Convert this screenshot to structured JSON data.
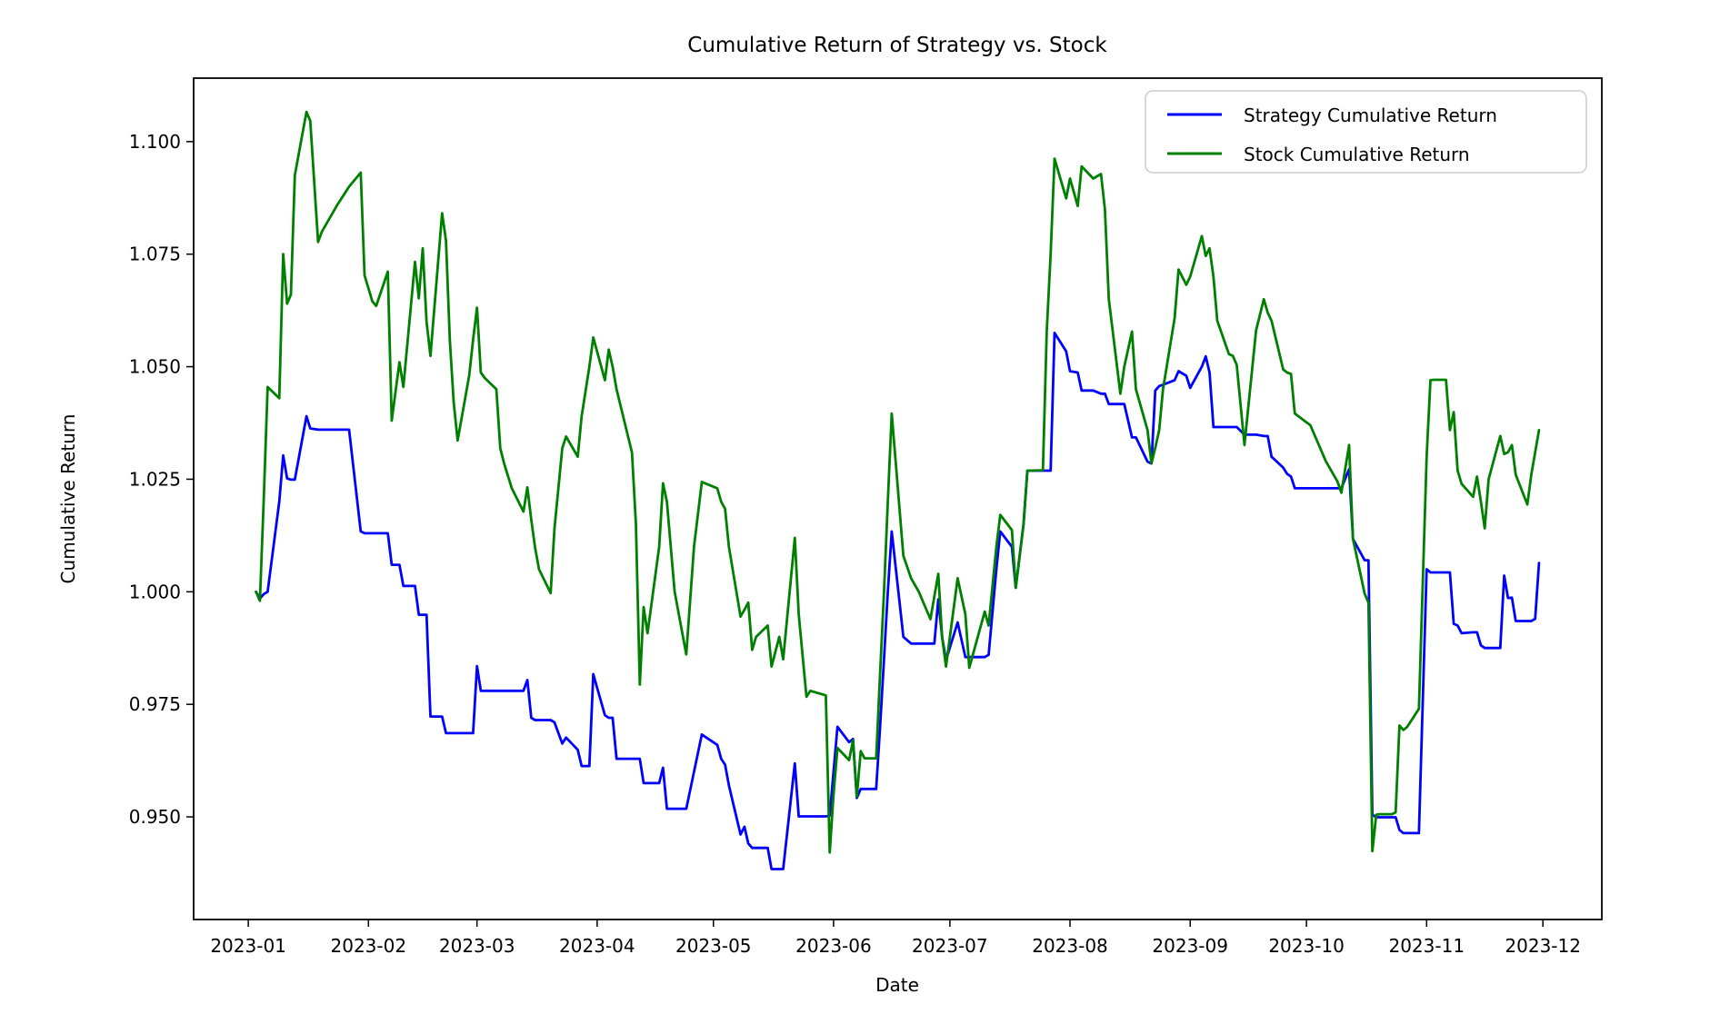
{
  "chart_data": {
    "type": "line",
    "title": "Cumulative Return of Strategy vs. Stock",
    "xlabel": "Date",
    "ylabel": "Cumulative Return",
    "year": 2023,
    "grid": false,
    "background_color": "#ffffff",
    "axis_color": "#000000",
    "legend": {
      "position": "upper right",
      "border_color": "#cccccc",
      "entries": [
        "Strategy Cumulative Return",
        "Stock Cumulative Return"
      ]
    },
    "x_tick_labels": [
      "2023-01",
      "2023-02",
      "2023-03",
      "2023-04",
      "2023-05",
      "2023-06",
      "2023-07",
      "2023-08",
      "2023-09",
      "2023-10",
      "2023-11",
      "2023-12"
    ],
    "y_ticks": [
      0.95,
      0.975,
      1.0,
      1.025,
      1.05,
      1.075,
      1.1
    ],
    "ylim": [
      0.9272,
      1.1141
    ],
    "xlim_days_from_jan1": [
      -14.1,
      349.2
    ],
    "series": [
      {
        "name": "Strategy Cumulative Return",
        "color": "#0000ff",
        "key": 1
      },
      {
        "name": "Stock Cumulative Return",
        "color": "#008000",
        "key": 2
      }
    ],
    "points_format": [
      "date_2023_MM-DD",
      "strategy_cumulative_return",
      "stock_cumulative_return"
    ],
    "points": [
      [
        "01-03",
        1.0,
        1.0
      ],
      [
        "01-04",
        0.9985,
        0.998
      ],
      [
        "01-05",
        0.9995,
        1.021
      ],
      [
        "01-06",
        1.0,
        1.0455
      ],
      [
        "01-09",
        1.02,
        1.043
      ],
      [
        "01-10",
        1.0303,
        1.075
      ],
      [
        "01-11",
        1.0252,
        1.064
      ],
      [
        "01-12",
        1.0249,
        1.066
      ],
      [
        "01-13",
        1.0249,
        1.0925
      ],
      [
        "01-16",
        1.039,
        1.1066
      ],
      [
        "01-17",
        1.0363,
        1.1046
      ],
      [
        "01-19",
        1.036,
        1.0777
      ],
      [
        "01-20",
        1.036,
        1.08
      ],
      [
        "01-24",
        1.036,
        1.086
      ],
      [
        "01-27",
        1.036,
        1.09
      ],
      [
        "01-30",
        1.0134,
        1.0931
      ],
      [
        "01-31",
        1.013,
        1.0703
      ],
      [
        "02-02",
        1.013,
        1.0645
      ],
      [
        "02-03",
        1.013,
        1.0635
      ],
      [
        "02-06",
        1.013,
        1.0711
      ],
      [
        "02-07",
        1.006,
        1.038
      ],
      [
        "02-08",
        1.006,
        1.0445
      ],
      [
        "02-09",
        1.006,
        1.051
      ],
      [
        "02-10",
        1.0013,
        1.0455
      ],
      [
        "02-13",
        1.0013,
        1.0733
      ],
      [
        "02-14",
        0.9949,
        1.0652
      ],
      [
        "02-15",
        0.9949,
        1.0763
      ],
      [
        "02-16",
        0.9949,
        1.06
      ],
      [
        "02-17",
        0.9723,
        1.0524
      ],
      [
        "02-20",
        0.9723,
        1.0841
      ],
      [
        "02-21",
        0.9686,
        1.078
      ],
      [
        "02-22",
        0.9686,
        1.056
      ],
      [
        "02-23",
        0.9686,
        1.042
      ],
      [
        "02-24",
        0.9686,
        1.0336
      ],
      [
        "02-27",
        0.9686,
        1.048
      ],
      [
        "02-28",
        0.9686,
        1.056
      ],
      [
        "03-01",
        0.9835,
        1.0631
      ],
      [
        "03-02",
        0.978,
        1.0487
      ],
      [
        "03-03",
        0.978,
        1.0475
      ],
      [
        "03-06",
        0.978,
        1.045
      ],
      [
        "03-07",
        0.978,
        1.0319
      ],
      [
        "03-08",
        0.978,
        1.0285
      ],
      [
        "03-10",
        0.978,
        1.023
      ],
      [
        "03-13",
        0.978,
        1.0178
      ],
      [
        "03-14",
        0.9804,
        1.0232
      ],
      [
        "03-15",
        0.972,
        1.016
      ],
      [
        "03-16",
        0.9715,
        1.0098
      ],
      [
        "03-17",
        0.9715,
        1.005
      ],
      [
        "03-20",
        0.9715,
        0.9997
      ],
      [
        "03-21",
        0.971,
        1.014
      ],
      [
        "03-23",
        0.9663,
        1.0319
      ],
      [
        "03-24",
        0.9676,
        1.0345
      ],
      [
        "03-27",
        0.9649,
        1.03
      ],
      [
        "03-28",
        0.9613,
        1.039
      ],
      [
        "03-30",
        0.9613,
        1.05
      ],
      [
        "03-31",
        0.9817,
        1.0565
      ],
      [
        "04-03",
        0.9726,
        1.047
      ],
      [
        "04-04",
        0.972,
        1.0538
      ],
      [
        "04-05",
        0.972,
        1.05
      ],
      [
        "04-06",
        0.9629,
        1.045
      ],
      [
        "04-10",
        0.9629,
        1.0309
      ],
      [
        "04-11",
        0.9629,
        1.015
      ],
      [
        "04-12",
        0.9629,
        0.9794
      ],
      [
        "04-13",
        0.9575,
        0.9966
      ],
      [
        "04-14",
        0.9575,
        0.9908
      ],
      [
        "04-17",
        0.9575,
        1.01
      ],
      [
        "04-18",
        0.9609,
        1.0241
      ],
      [
        "04-19",
        0.9518,
        1.02
      ],
      [
        "04-21",
        0.9518,
        1.0
      ],
      [
        "04-24",
        0.9518,
        0.9861
      ],
      [
        "04-26",
        0.96,
        1.01
      ],
      [
        "04-28",
        0.9683,
        1.0244
      ],
      [
        "05-02",
        0.966,
        1.023
      ],
      [
        "05-03",
        0.9629,
        1.02
      ],
      [
        "05-04",
        0.9616,
        1.0184
      ],
      [
        "05-05",
        0.957,
        1.01
      ],
      [
        "05-08",
        0.9461,
        0.9945
      ],
      [
        "05-09",
        0.9478,
        0.996
      ],
      [
        "05-10",
        0.9441,
        0.9976
      ],
      [
        "05-11",
        0.9431,
        0.9871
      ],
      [
        "05-12",
        0.9431,
        0.99
      ],
      [
        "05-15",
        0.9431,
        0.9925
      ],
      [
        "05-16",
        0.9384,
        0.9834
      ],
      [
        "05-18",
        0.9384,
        0.99
      ],
      [
        "05-19",
        0.9384,
        0.985
      ],
      [
        "05-22",
        0.9619,
        1.012
      ],
      [
        "05-23",
        0.9501,
        0.995
      ],
      [
        "05-25",
        0.9501,
        0.9767
      ],
      [
        "05-26",
        0.9501,
        0.978
      ],
      [
        "05-30",
        0.9501,
        0.977
      ],
      [
        "05-31",
        0.9503,
        0.9421
      ],
      [
        "06-01",
        0.96,
        0.955
      ],
      [
        "06-02",
        0.97,
        0.9653
      ],
      [
        "06-05",
        0.9666,
        0.9626
      ],
      [
        "06-06",
        0.9673,
        0.967
      ],
      [
        "06-07",
        0.9542,
        0.9545
      ],
      [
        "06-08",
        0.9562,
        0.9646
      ],
      [
        "06-09",
        0.9562,
        0.963
      ],
      [
        "06-12",
        0.9562,
        0.963
      ],
      [
        "06-13",
        0.97,
        0.9818
      ],
      [
        "06-14",
        0.985,
        1.0
      ],
      [
        "06-15",
        1.0,
        1.02
      ],
      [
        "06-16",
        1.0134,
        1.0396
      ],
      [
        "06-19",
        0.99,
        1.008
      ],
      [
        "06-21",
        0.9885,
        1.003
      ],
      [
        "06-23",
        0.9885,
        1.0
      ],
      [
        "06-26",
        0.9885,
        0.9939
      ],
      [
        "06-27",
        0.9885,
        0.999
      ],
      [
        "06-28",
        0.9983,
        1.004
      ],
      [
        "06-29",
        0.99,
        0.99
      ],
      [
        "06-30",
        0.9848,
        0.9834
      ],
      [
        "07-03",
        0.9932,
        1.003
      ],
      [
        "07-05",
        0.9855,
        0.995
      ],
      [
        "07-06",
        0.9855,
        0.9831
      ],
      [
        "07-10",
        0.9855,
        0.9956
      ],
      [
        "07-11",
        0.986,
        0.9925
      ],
      [
        "07-13",
        1.005,
        1.01
      ],
      [
        "07-14",
        1.0134,
        1.0171
      ],
      [
        "07-17",
        1.01,
        1.0137
      ],
      [
        "07-18",
        1.0009,
        1.0009
      ],
      [
        "07-20",
        1.015,
        1.015
      ],
      [
        "07-21",
        1.0269,
        1.0269
      ],
      [
        "07-25",
        1.0269,
        1.027
      ],
      [
        "07-26",
        1.0269,
        1.0578
      ],
      [
        "07-27",
        1.0269,
        1.075
      ],
      [
        "07-28",
        1.0575,
        1.0962
      ],
      [
        "07-31",
        1.0534,
        1.0874
      ],
      [
        "08-01",
        1.049,
        1.0918
      ],
      [
        "08-03",
        1.0487,
        1.0857
      ],
      [
        "08-04",
        1.0447,
        1.0945
      ],
      [
        "08-07",
        1.0447,
        1.0918
      ],
      [
        "08-09",
        1.044,
        1.0928
      ],
      [
        "08-10",
        1.044,
        1.085
      ],
      [
        "08-11",
        1.0417,
        1.065
      ],
      [
        "08-14",
        1.0417,
        1.044
      ],
      [
        "08-15",
        1.0417,
        1.05
      ],
      [
        "08-17",
        1.0343,
        1.0578
      ],
      [
        "08-18",
        1.0343,
        1.045
      ],
      [
        "08-21",
        1.0289,
        1.0359
      ],
      [
        "08-22",
        1.0285,
        1.0285
      ],
      [
        "08-23",
        1.0447,
        1.032
      ],
      [
        "08-24",
        1.0457,
        1.0359
      ],
      [
        "08-25",
        1.046,
        1.045
      ],
      [
        "08-28",
        1.047,
        1.0608
      ],
      [
        "08-29",
        1.049,
        1.0716
      ],
      [
        "08-31",
        1.048,
        1.0682
      ],
      [
        "09-01",
        1.0453,
        1.07
      ],
      [
        "09-04",
        1.05,
        1.079
      ],
      [
        "09-05",
        1.0523,
        1.0746
      ],
      [
        "09-06",
        1.0487,
        1.0763
      ],
      [
        "09-07",
        1.0366,
        1.07
      ],
      [
        "09-08",
        1.0366,
        1.0602
      ],
      [
        "09-11",
        1.0366,
        1.0528
      ],
      [
        "09-12",
        1.0366,
        1.0524
      ],
      [
        "09-13",
        1.0366,
        1.0504
      ],
      [
        "09-15",
        1.0349,
        1.0326
      ],
      [
        "09-18",
        1.0349,
        1.0581
      ],
      [
        "09-20",
        1.0346,
        1.065
      ],
      [
        "09-21",
        1.0346,
        1.062
      ],
      [
        "09-22",
        1.03,
        1.0602
      ],
      [
        "09-25",
        1.0276,
        1.0494
      ],
      [
        "09-26",
        1.0262,
        1.0487
      ],
      [
        "09-27",
        1.0256,
        1.0484
      ],
      [
        "09-28",
        1.023,
        1.0396
      ],
      [
        "10-02",
        1.023,
        1.037
      ],
      [
        "10-04",
        1.023,
        1.033
      ],
      [
        "10-06",
        1.023,
        1.029
      ],
      [
        "10-09",
        1.023,
        1.0245
      ],
      [
        "10-10",
        1.023,
        1.022
      ],
      [
        "10-12",
        1.0272,
        1.0326
      ],
      [
        "10-13",
        1.0117,
        1.0117
      ],
      [
        "10-16",
        1.007,
        0.9996
      ],
      [
        "10-17",
        1.007,
        0.9976
      ],
      [
        "10-18",
        0.9505,
        0.9424
      ],
      [
        "10-19",
        0.9499,
        0.9505
      ],
      [
        "10-20",
        0.9499,
        0.9506
      ],
      [
        "10-23",
        0.9499,
        0.9506
      ],
      [
        "10-24",
        0.9499,
        0.951
      ],
      [
        "10-25",
        0.9471,
        0.9703
      ],
      [
        "10-26",
        0.9464,
        0.9693
      ],
      [
        "10-27",
        0.9464,
        0.97
      ],
      [
        "10-30",
        0.9464,
        0.974
      ],
      [
        "11-01",
        1.005,
        1.03
      ],
      [
        "11-02",
        1.0043,
        1.047
      ],
      [
        "11-03",
        1.0043,
        1.0471
      ],
      [
        "11-06",
        1.0043,
        1.0471
      ],
      [
        "11-07",
        1.0043,
        1.0359
      ],
      [
        "11-08",
        0.9929,
        1.0399
      ],
      [
        "11-09",
        0.9925,
        1.0269
      ],
      [
        "11-10",
        0.9908,
        1.024
      ],
      [
        "11-13",
        0.991,
        1.0211
      ],
      [
        "11-14",
        0.991,
        1.0256
      ],
      [
        "11-15",
        0.9881,
        1.02
      ],
      [
        "11-16",
        0.9875,
        1.0141
      ],
      [
        "11-17",
        0.9875,
        1.025
      ],
      [
        "11-20",
        0.9875,
        1.0346
      ],
      [
        "11-21",
        1.0036,
        1.0306
      ],
      [
        "11-22",
        0.9986,
        1.031
      ],
      [
        "11-23",
        0.9987,
        1.0326
      ],
      [
        "11-24",
        0.9935,
        1.026
      ],
      [
        "11-27",
        0.9935,
        1.0194
      ],
      [
        "11-28",
        0.9935,
        1.026
      ],
      [
        "11-29",
        0.994,
        1.031
      ],
      [
        "11-30",
        1.0064,
        1.0359
      ]
    ]
  }
}
